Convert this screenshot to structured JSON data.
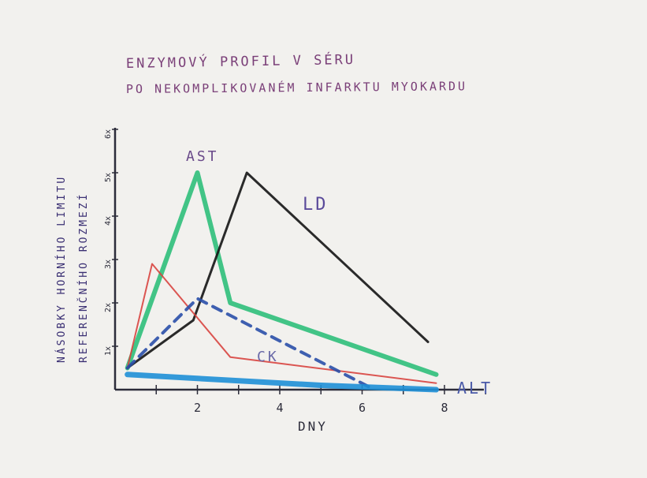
{
  "chart_data": {
    "type": "line",
    "title_line1": "ENZYMOVÝ PROFIL V SÉRU",
    "title_line2": "PO NEKOMPLIKOVANÉM INFARKTU MYOKARDU",
    "xlabel": "DNY",
    "ylabel_line1": "NÁSOBKY HORNÍHO LIMITU",
    "ylabel_line2": "REFERENČNÍHO ROZMEZÍ",
    "x_ticks": [
      "2",
      "4",
      "6",
      "8"
    ],
    "y_ticks": [
      "1x",
      "2x",
      "3x",
      "4x",
      "5x",
      "6x"
    ],
    "xlim": [
      0,
      8
    ],
    "ylim": [
      0,
      6
    ],
    "series": [
      {
        "name": "AST",
        "color": "#2fbf7a",
        "width": 6,
        "dash": "",
        "points": [
          [
            0.3,
            0.5
          ],
          [
            2.0,
            5.0
          ],
          [
            2.8,
            2.0
          ],
          [
            7.8,
            0.35
          ]
        ]
      },
      {
        "name": "LD",
        "color": "#141414",
        "width": 3,
        "dash": "",
        "points": [
          [
            0.3,
            0.5
          ],
          [
            1.9,
            1.6
          ],
          [
            3.2,
            5.0
          ],
          [
            7.6,
            1.1
          ]
        ]
      },
      {
        "name": "CK",
        "color": "#d8443f",
        "width": 2,
        "dash": "",
        "points": [
          [
            0.3,
            0.5
          ],
          [
            0.9,
            2.9
          ],
          [
            2.8,
            0.75
          ],
          [
            7.8,
            0.15
          ]
        ]
      },
      {
        "name": "",
        "color": "#2a4fa8",
        "width": 4,
        "dash": "12 9",
        "points": [
          [
            0.3,
            0.5
          ],
          [
            2.0,
            2.1
          ],
          [
            6.2,
            0.05
          ]
        ]
      },
      {
        "name": "ALT",
        "color": "#1e8fd6",
        "width": 7,
        "dash": "",
        "points": [
          [
            0.3,
            0.35
          ],
          [
            5.0,
            0.1
          ],
          [
            7.8,
            0.0
          ]
        ]
      }
    ],
    "labels": {
      "ast": "AST",
      "ld": "LD",
      "ck": "CK",
      "alt": "ALT"
    }
  }
}
